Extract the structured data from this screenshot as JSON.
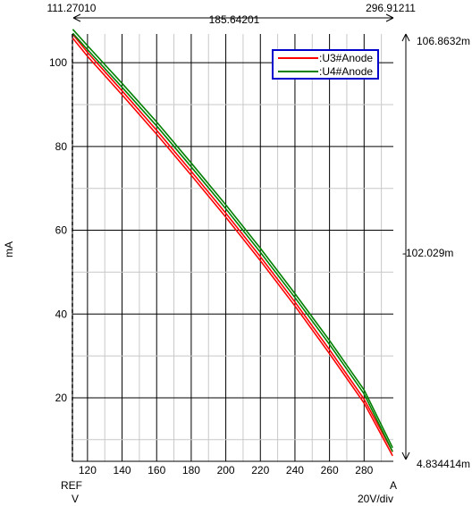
{
  "chart_data": {
    "type": "line",
    "ylabel": "mA",
    "xlim": [
      111.2701,
      296.91211
    ],
    "ylim": [
      4.834414,
      106.8632
    ],
    "x_ticks": [
      120,
      140,
      160,
      180,
      200,
      220,
      240,
      260,
      280
    ],
    "x_tick_labels": [
      "120",
      "140",
      "160",
      "180",
      "200",
      "220",
      "240",
      "260",
      "280"
    ],
    "y_ticks": [
      20,
      40,
      60,
      80,
      100
    ],
    "y_tick_labels": [
      "20",
      "40",
      "60",
      "80",
      "100"
    ],
    "grid": true,
    "legend_position": "top-right",
    "cursor": {
      "x_left": "111.27010",
      "x_right": "296.91211",
      "x_delta": "185.64201",
      "y_top": "106.8632m",
      "y_bottom": "4.834414m",
      "y_delta": "-102.029m"
    },
    "ref_label": "REF",
    "x_unit": "V",
    "y_unit_right": "A",
    "x_scale": "20V/div",
    "series": [
      {
        "name": ":U3#Anode",
        "color": "#ff0000",
        "x": [
          111.5,
          120,
          140,
          160,
          180,
          200,
          220,
          240,
          260,
          280,
          296.5
        ],
        "y": [
          106.3,
          102,
          92.8,
          83.4,
          73.6,
          63.6,
          53.2,
          42.4,
          31.0,
          19.2,
          6.6
        ]
      },
      {
        "name": ":U4#Anode",
        "color": "#008000",
        "x": [
          111.5,
          120,
          140,
          160,
          180,
          200,
          220,
          240,
          260,
          280,
          296.5
        ],
        "y": [
          107.5,
          103.6,
          94.6,
          85.4,
          75.6,
          65.6,
          55.2,
          44.4,
          33.2,
          21.4,
          7.6
        ]
      }
    ]
  }
}
